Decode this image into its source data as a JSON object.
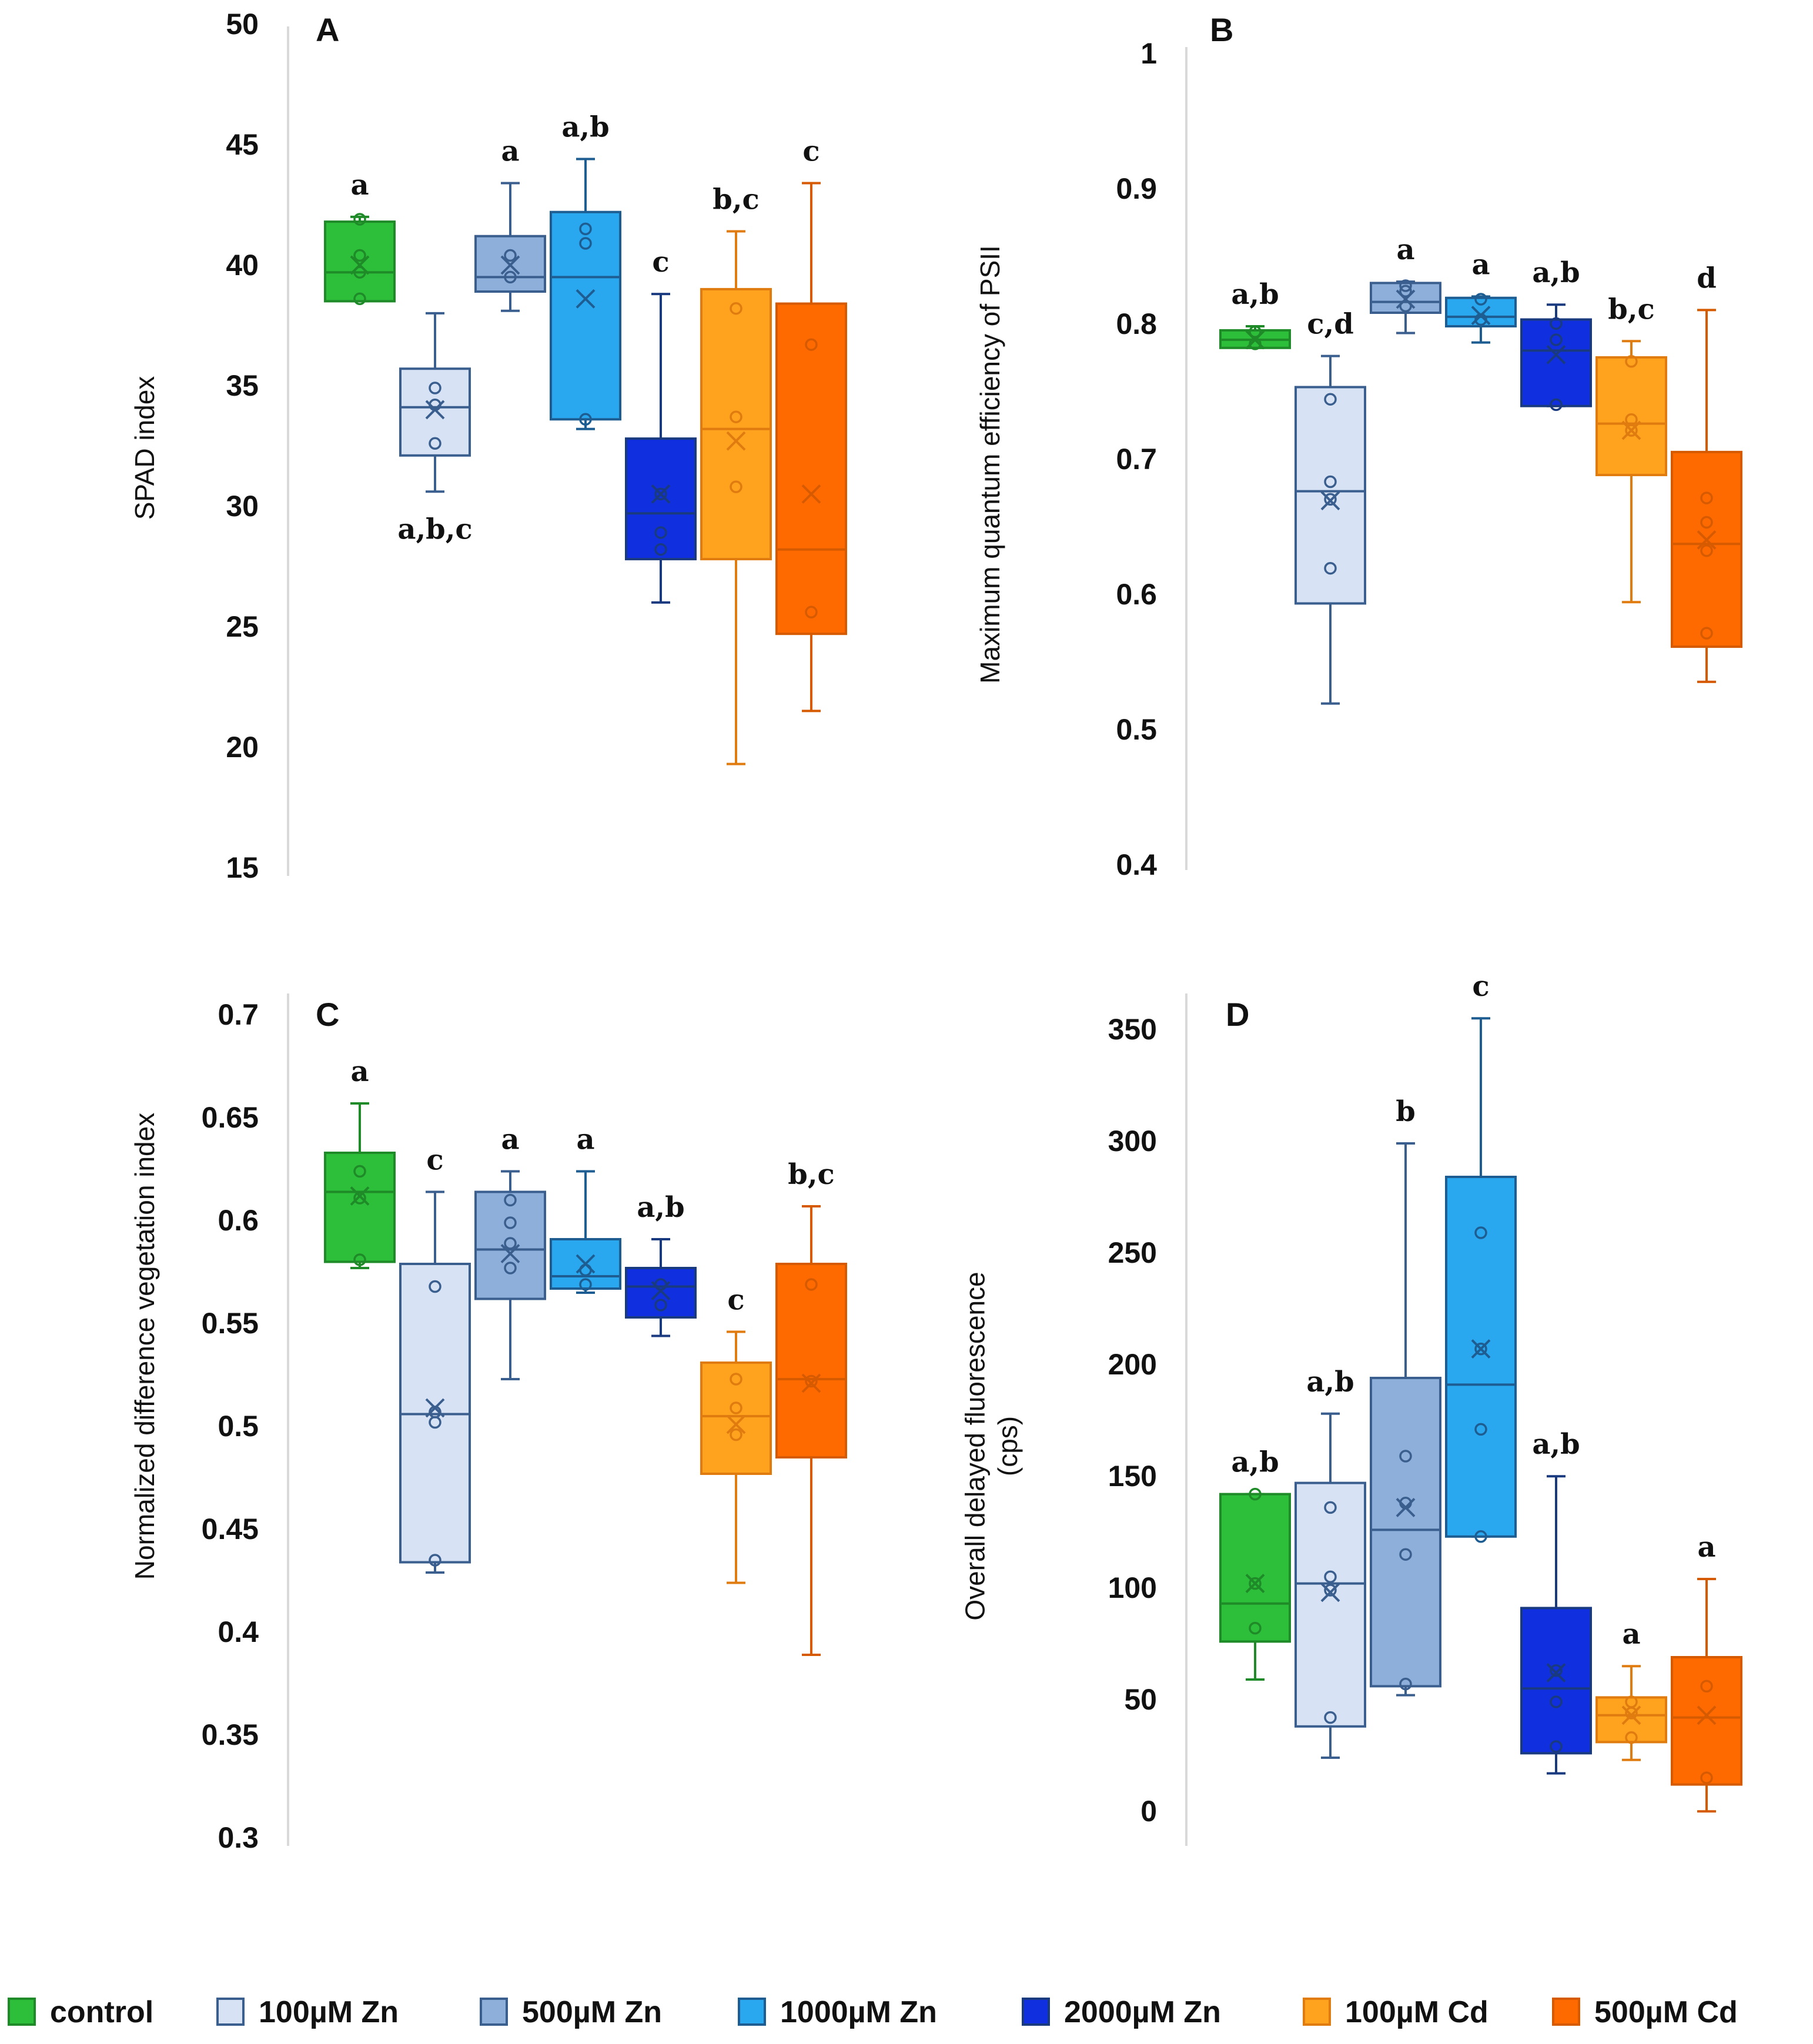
{
  "legend": [
    {
      "label": "control",
      "fill": "#2dbe3a",
      "stroke": "#1f8a28"
    },
    {
      "label": "100µM Zn",
      "fill": "#d7e3f4",
      "stroke": "#3a5f8f"
    },
    {
      "label": "500µM Zn",
      "fill": "#8eafd9",
      "stroke": "#3a5f8f"
    },
    {
      "label": "1000µM Zn",
      "fill": "#2aa8ef",
      "stroke": "#1e5d91"
    },
    {
      "label": "2000µM Zn",
      "fill": "#1030e0",
      "stroke": "#1a3a80"
    },
    {
      "label": "100µM Cd",
      "fill": "#ffa31f",
      "stroke": "#e07b10"
    },
    {
      "label": "500µM Cd",
      "fill": "#ff6a00",
      "stroke": "#d65a00"
    }
  ],
  "chart_data": [
    {
      "id": "A",
      "panel_label": "A",
      "type": "box",
      "ylabel": "SPAD index",
      "ylim": [
        15,
        50
      ],
      "yticks": [
        "15",
        "20",
        "25",
        "30",
        "35",
        "40",
        "45",
        "50"
      ],
      "categories": [
        "control",
        "100µM Zn",
        "500µM Zn",
        "1000µM Zn",
        "2000µM Zn",
        "100µM Cd",
        "500µM Cd"
      ],
      "boxes": [
        {
          "min": 38.6,
          "q1": 38.6,
          "median": 39.8,
          "q3": 41.9,
          "max": 42.1,
          "mean": 40.1,
          "points": [
            38.7,
            39.8,
            40.5,
            42.0
          ],
          "sig": "a",
          "sig_pos": "above"
        },
        {
          "min": 30.7,
          "q1": 32.2,
          "median": 34.2,
          "q3": 35.8,
          "max": 38.1,
          "mean": 34.1,
          "points": [
            32.7,
            34.3,
            35.0
          ],
          "sig": "a,b,c",
          "sig_pos": "below"
        },
        {
          "min": 38.2,
          "q1": 39.0,
          "median": 39.6,
          "q3": 41.3,
          "max": 43.5,
          "mean": 40.1,
          "points": [
            39.6,
            40.5
          ],
          "sig": "a",
          "sig_pos": "above"
        },
        {
          "min": 33.3,
          "q1": 33.7,
          "median": 39.6,
          "q3": 42.3,
          "max": 44.5,
          "mean": 38.7,
          "points": [
            33.7,
            41.0,
            41.6
          ],
          "sig": "a,b",
          "sig_pos": "above"
        },
        {
          "min": 26.1,
          "q1": 27.9,
          "median": 29.8,
          "q3": 32.9,
          "max": 38.9,
          "mean": 30.6,
          "points": [
            28.3,
            29.0,
            30.6
          ],
          "sig": "c",
          "sig_pos": "above"
        },
        {
          "min": 19.4,
          "q1": 27.9,
          "median": 33.3,
          "q3": 39.1,
          "max": 41.5,
          "mean": 32.8,
          "points": [
            30.9,
            33.8,
            38.3
          ],
          "sig": "b,c",
          "sig_pos": "above"
        },
        {
          "min": 21.6,
          "q1": 24.8,
          "median": 28.3,
          "q3": 38.5,
          "max": 43.5,
          "mean": 30.6,
          "points": [
            25.7,
            36.8
          ],
          "sig": "c",
          "sig_pos": "above"
        }
      ]
    },
    {
      "id": "B",
      "panel_label": "B",
      "type": "box",
      "ylabel": "Maximum quantum efficiency of PSII",
      "ylim": [
        0.4,
        1.0
      ],
      "yticks": [
        "0.4",
        "0.5",
        "0.6",
        "0.7",
        "0.8",
        "0.9",
        "1"
      ],
      "categories": [
        "control",
        "100µM Zn",
        "500µM Zn",
        "1000µM Zn",
        "2000µM Zn",
        "100µM Cd",
        "500µM Cd"
      ],
      "boxes": [
        {
          "min": 0.784,
          "q1": 0.784,
          "median": 0.79,
          "q3": 0.797,
          "max": 0.8,
          "mean": 0.79,
          "points": [
            0.787,
            0.796
          ],
          "sig": "a,b",
          "sig_pos": "above"
        },
        {
          "min": 0.521,
          "q1": 0.595,
          "median": 0.678,
          "q3": 0.755,
          "max": 0.778,
          "mean": 0.671,
          "points": [
            0.621,
            0.672,
            0.685,
            0.746
          ],
          "sig": "c,d",
          "sig_pos": "above"
        },
        {
          "min": 0.795,
          "q1": 0.81,
          "median": 0.818,
          "q3": 0.832,
          "max": 0.833,
          "mean": 0.82,
          "points": [
            0.815,
            0.826,
            0.83
          ],
          "sig": "a",
          "sig_pos": "above"
        },
        {
          "min": 0.788,
          "q1": 0.8,
          "median": 0.807,
          "q3": 0.821,
          "max": 0.822,
          "mean": 0.808,
          "points": [
            0.805,
            0.82
          ],
          "sig": "a",
          "sig_pos": "above"
        },
        {
          "min": 0.741,
          "q1": 0.741,
          "median": 0.782,
          "q3": 0.805,
          "max": 0.816,
          "mean": 0.779,
          "points": [
            0.742,
            0.79,
            0.802
          ],
          "sig": "a,b",
          "sig_pos": "above"
        },
        {
          "min": 0.596,
          "q1": 0.69,
          "median": 0.728,
          "q3": 0.777,
          "max": 0.789,
          "mean": 0.723,
          "points": [
            0.723,
            0.731,
            0.774
          ],
          "sig": "b,c",
          "sig_pos": "above"
        },
        {
          "min": 0.537,
          "q1": 0.563,
          "median": 0.639,
          "q3": 0.707,
          "max": 0.812,
          "mean": 0.642,
          "points": [
            0.573,
            0.634,
            0.655,
            0.673
          ],
          "sig": "d",
          "sig_pos": "above"
        }
      ]
    },
    {
      "id": "C",
      "panel_label": "C",
      "type": "box",
      "ylabel": "Normalized difference vegetation index",
      "ylim": [
        0.3,
        0.7
      ],
      "yticks": [
        "0.3",
        "0.35",
        "0.4",
        "0.45",
        "0.5",
        "0.55",
        "0.6",
        "0.65",
        "0.7"
      ],
      "categories": [
        "control",
        "100µM Zn",
        "500µM Zn",
        "1000µM Zn",
        "2000µM Zn",
        "100µM Cd",
        "500µM Cd"
      ],
      "boxes": [
        {
          "min": 0.578,
          "q1": 0.581,
          "median": 0.615,
          "q3": 0.634,
          "max": 0.658,
          "mean": 0.613,
          "points": [
            0.582,
            0.612,
            0.625
          ],
          "sig": "a",
          "sig_pos": "above"
        },
        {
          "min": 0.43,
          "q1": 0.435,
          "median": 0.507,
          "q3": 0.58,
          "max": 0.615,
          "mean": 0.51,
          "points": [
            0.436,
            0.503,
            0.508,
            0.569
          ],
          "sig": "c",
          "sig_pos": "above"
        },
        {
          "min": 0.524,
          "q1": 0.563,
          "median": 0.587,
          "q3": 0.615,
          "max": 0.625,
          "mean": 0.585,
          "points": [
            0.578,
            0.59,
            0.6,
            0.611
          ],
          "sig": "a",
          "sig_pos": "above"
        },
        {
          "min": 0.566,
          "q1": 0.568,
          "median": 0.574,
          "q3": 0.592,
          "max": 0.625,
          "mean": 0.58,
          "points": [
            0.57,
            0.577
          ],
          "sig": "a",
          "sig_pos": "above"
        },
        {
          "min": 0.545,
          "q1": 0.554,
          "median": 0.569,
          "q3": 0.578,
          "max": 0.592,
          "mean": 0.567,
          "points": [
            0.56,
            0.57
          ],
          "sig": "a,b",
          "sig_pos": "above"
        },
        {
          "min": 0.425,
          "q1": 0.478,
          "median": 0.506,
          "q3": 0.532,
          "max": 0.547,
          "mean": 0.502,
          "points": [
            0.497,
            0.51,
            0.524
          ],
          "sig": "c",
          "sig_pos": "above"
        },
        {
          "min": 0.39,
          "q1": 0.486,
          "median": 0.524,
          "q3": 0.58,
          "max": 0.608,
          "mean": 0.522,
          "points": [
            0.523,
            0.57
          ],
          "sig": "b,c",
          "sig_pos": "above"
        }
      ]
    },
    {
      "id": "D",
      "panel_label": "D",
      "type": "box",
      "ylabel": "Overall delayed fluorescence\n(cps)",
      "ylim": [
        0,
        350
      ],
      "yticks": [
        "0",
        "50",
        "100",
        "150",
        "200",
        "250",
        "300",
        "350"
      ],
      "categories": [
        "control",
        "100µM Zn",
        "500µM Zn",
        "1000µM Zn",
        "2000µM Zn",
        "100µM Cd",
        "500µM Cd"
      ],
      "boxes": [
        {
          "min": 60,
          "q1": 77,
          "median": 94,
          "q3": 143,
          "max": 143,
          "mean": 103,
          "points": [
            83,
            103,
            143
          ],
          "sig": "a,b",
          "sig_pos": "above"
        },
        {
          "min": 25,
          "q1": 39,
          "median": 103,
          "q3": 148,
          "max": 179,
          "mean": 99,
          "points": [
            43,
            100,
            106,
            137
          ],
          "sig": "a,b",
          "sig_pos": "above"
        },
        {
          "min": 53,
          "q1": 57,
          "median": 127,
          "q3": 195,
          "max": 300,
          "mean": 137,
          "points": [
            58,
            116,
            139,
            160
          ],
          "sig": "b",
          "sig_pos": "above"
        },
        {
          "min": 124,
          "q1": 124,
          "median": 192,
          "q3": 285,
          "max": 356,
          "mean": 208,
          "points": [
            124,
            172,
            208,
            260
          ],
          "sig": "c",
          "sig_pos": "above"
        },
        {
          "min": 18,
          "q1": 27,
          "median": 56,
          "q3": 92,
          "max": 151,
          "mean": 63,
          "points": [
            30,
            50,
            64
          ],
          "sig": "a,b",
          "sig_pos": "above"
        },
        {
          "min": 24,
          "q1": 32,
          "median": 44,
          "q3": 52,
          "max": 66,
          "mean": 44,
          "points": [
            34,
            45,
            50
          ],
          "sig": "a",
          "sig_pos": "above"
        },
        {
          "min": 1,
          "q1": 13,
          "median": 43,
          "q3": 70,
          "max": 105,
          "mean": 44,
          "points": [
            16,
            57
          ],
          "sig": "a",
          "sig_pos": "above"
        }
      ]
    }
  ]
}
